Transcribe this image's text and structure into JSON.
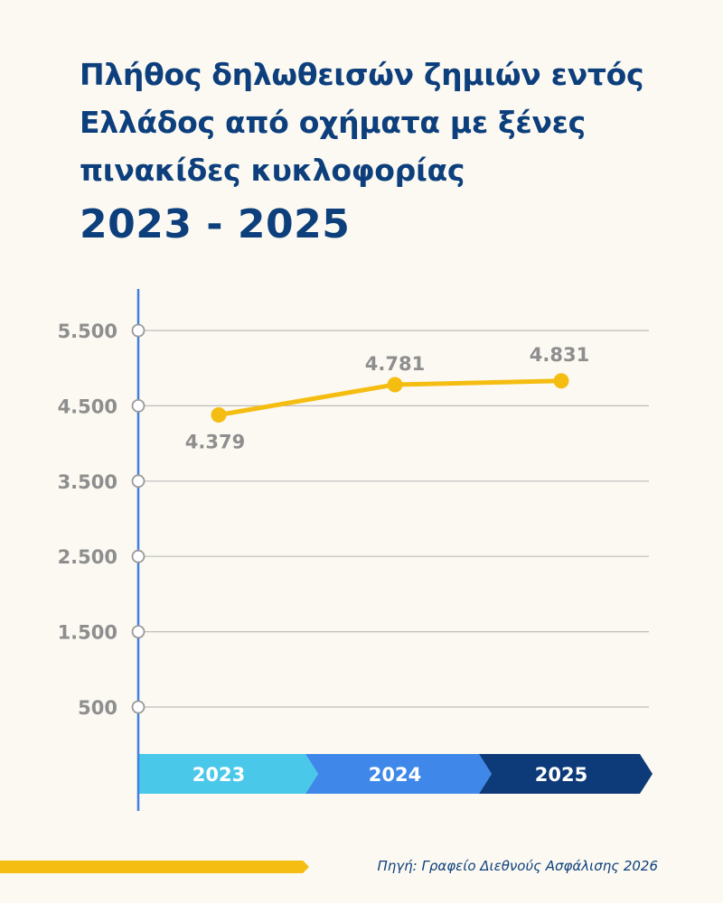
{
  "title": {
    "lines": [
      "Πλήθος δηλωθεισών ζημιών εντός",
      "Ελλάδος από οχήματα με ξένες",
      "πινακίδες κυκλοφορίας"
    ],
    "years": "2023 - 2025"
  },
  "source": "Πηγή: Γραφείο Διεθνούς Ασφάλισης 2026",
  "colors": {
    "background": "#fbf9f1",
    "title": "#0d3f7d",
    "axis": "#3f7fe0",
    "line": "#f5bd12",
    "tick_label": "#8e8e8e",
    "grid": "#bdbdbd",
    "band_2023": "#4ac8e9",
    "band_2024": "#3f88ea",
    "band_2025": "#0d3a78",
    "source_bar": "#f5bd12"
  },
  "chart_data": {
    "type": "line",
    "categories": [
      "2023",
      "2024",
      "2025"
    ],
    "x": [
      "2023",
      "2024",
      "2025"
    ],
    "series": [
      {
        "values": [
          4379,
          4781,
          4831
        ],
        "labels": [
          "4.379",
          "4.781",
          "4.831"
        ]
      }
    ],
    "yticks": [
      500,
      1500,
      2500,
      3500,
      4500,
      5500
    ],
    "ytick_labels": [
      "500",
      "1.500",
      "2.500",
      "3.500",
      "4.500",
      "5.500"
    ],
    "ylim": [
      0,
      5500
    ],
    "grid": true,
    "legend": "none",
    "xlabel": "",
    "ylabel": ""
  }
}
